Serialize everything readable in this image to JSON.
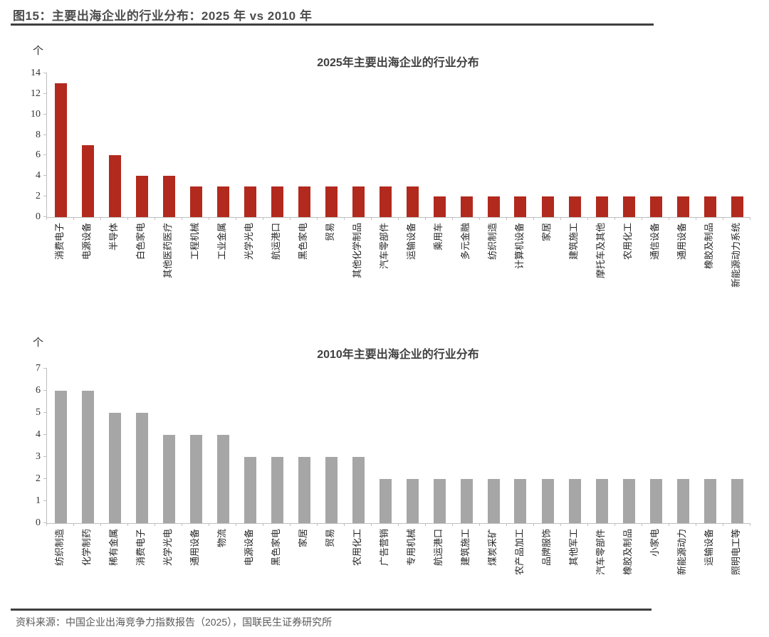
{
  "header": {
    "title": "图15：主要出海企业的行业分布：2025 年 vs 2010 年"
  },
  "footer": {
    "source": "资料来源：中国企业出海竞争力指数报告（2025），国联民生证券研究所"
  },
  "colors": {
    "bar_2025": "#b2291e",
    "bar_2010": "#a6a6a6",
    "axis_line": "#bfbfbf",
    "rule": "#3f3f3f",
    "title_text": "#404040"
  },
  "chart_data": [
    {
      "type": "bar",
      "title": "2025年主要出海企业的行业分布",
      "unit_label": "个",
      "xlabel": "",
      "ylabel": "个",
      "ylim": [
        0,
        14
      ],
      "ytick_step": 2,
      "grid": false,
      "legend": "none",
      "bar_color": "#b2291e",
      "categories": [
        "消费电子",
        "电源设备",
        "半导体",
        "白色家电",
        "其他医药医疗",
        "工程机械",
        "工业金属",
        "光学光电",
        "航运港口",
        "黑色家电",
        "贸易",
        "其他化学制品",
        "汽车零部件",
        "运输设备",
        "乘用车",
        "多元金融",
        "纺织制造",
        "计算机设备",
        "家居",
        "建筑施工",
        "摩托车及其他",
        "农用化工",
        "通信设备",
        "通用设备",
        "橡胶及制品",
        "新能源动力系统"
      ],
      "values": [
        13,
        7,
        6,
        4,
        4,
        3,
        3,
        3,
        3,
        3,
        3,
        3,
        3,
        3,
        2,
        2,
        2,
        2,
        2,
        2,
        2,
        2,
        2,
        2,
        2,
        2
      ]
    },
    {
      "type": "bar",
      "title": "2010年主要出海企业的行业分布",
      "unit_label": "个",
      "xlabel": "",
      "ylabel": "个",
      "ylim": [
        0,
        7
      ],
      "ytick_step": 1,
      "grid": false,
      "legend": "none",
      "bar_color": "#a6a6a6",
      "categories": [
        "纺织制造",
        "化学制药",
        "稀有金属",
        "消费电子",
        "光学光电",
        "通用设备",
        "物流",
        "电源设备",
        "黑色家电",
        "家居",
        "贸易",
        "农用化工",
        "广告营销",
        "专用机械",
        "航运港口",
        "建筑施工",
        "煤炭采矿",
        "农产品加工",
        "品牌服饰",
        "其他军工",
        "汽车零部件",
        "橡胶及制品",
        "小家电",
        "新能源动力",
        "运输设备",
        "照明电工等"
      ],
      "values": [
        6,
        6,
        5,
        5,
        4,
        4,
        4,
        3,
        3,
        3,
        3,
        3,
        2,
        2,
        2,
        2,
        2,
        2,
        2,
        2,
        2,
        2,
        2,
        2,
        2,
        2
      ]
    }
  ]
}
